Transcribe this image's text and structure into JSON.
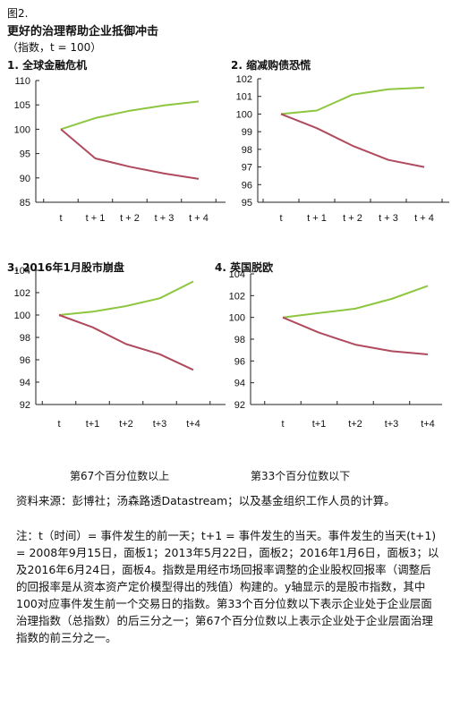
{
  "figure_label": "图2.",
  "title": "更好的治理帮助企业抵御冲击",
  "subtitle": "（指数，t = 100）",
  "legend": {
    "top67": "第67个百分位数以上",
    "bottom33": "第33个百分位数以下"
  },
  "colors": {
    "top67": "#8dc63f",
    "bottom33": "#b04a5f",
    "axis": "#222222"
  },
  "source": "资料来源：彭博社；汤森路透Datastream；以及基金组织工作人员的计算。",
  "note": "注：t（时间）= 事件发生的前一天；t+1 = 事件发生的当天。事件发生的当天(t+1) = 2008年9月15日，面板1；2013年5月22日，面板2；2016年1月6日，面板3；以及2016年6月24日，面板4。指数是用经市场回报率调整的企业股权回报率（调整后的回报率是从资本资产定价模型得出的残值）构建的。y轴显示的是股市指数，其中100对应事件发生前一个交易日的指数。第33个百分位数以下表示企业处于企业层面治理指数（总指数）的后三分之一；第67个百分位数以上表示企业处于企业层面治理指数的前三分之一。",
  "chart_data": [
    {
      "type": "line",
      "title": "1. 全球金融危机",
      "categories": [
        "t",
        "t + 1",
        "t + 2",
        "t + 3",
        "t + 4"
      ],
      "ylim": [
        85,
        110
      ],
      "yticks": [
        85,
        90,
        95,
        100,
        105,
        110
      ],
      "series": [
        {
          "name": "第67个百分位数以上",
          "values": [
            100,
            102.3,
            103.8,
            104.9,
            105.7
          ]
        },
        {
          "name": "第33个百分位数以下",
          "values": [
            100,
            94.0,
            92.3,
            90.9,
            89.8
          ]
        }
      ]
    },
    {
      "type": "line",
      "title": "2. 缩减购债恐慌",
      "categories": [
        "t",
        "t + 1",
        "t + 2",
        "t + 3",
        "t + 4"
      ],
      "ylim": [
        95,
        102
      ],
      "yticks": [
        95,
        96,
        97,
        98,
        99,
        100,
        101,
        102
      ],
      "series": [
        {
          "name": "第67个百分位数以上",
          "values": [
            100,
            100.2,
            101.1,
            101.4,
            101.5
          ]
        },
        {
          "name": "第33个百分位数以下",
          "values": [
            100,
            99.2,
            98.2,
            97.4,
            97.0
          ]
        }
      ]
    },
    {
      "type": "line",
      "title": "3. 2016年1月股市崩盘",
      "categories": [
        "t",
        "t+1",
        "t+2",
        "t+3",
        "t+4"
      ],
      "ylim": [
        92,
        104
      ],
      "yticks": [
        92,
        94,
        96,
        98,
        100,
        102,
        104
      ],
      "series": [
        {
          "name": "第67个百分位数以上",
          "values": [
            100,
            100.3,
            100.8,
            101.5,
            103.0
          ]
        },
        {
          "name": "第33个百分位数以下",
          "values": [
            100,
            98.9,
            97.4,
            96.5,
            95.1
          ]
        }
      ]
    },
    {
      "type": "line",
      "title": "4. 英国脱欧",
      "categories": [
        "t",
        "t+1",
        "t+2",
        "t+3",
        "t+4"
      ],
      "ylim": [
        92,
        104
      ],
      "yticks": [
        92,
        94,
        96,
        98,
        100,
        102,
        104
      ],
      "series": [
        {
          "name": "第67个百分位数以上",
          "values": [
            100,
            100.4,
            100.8,
            101.7,
            102.9
          ]
        },
        {
          "name": "第33个百分位数以下",
          "values": [
            100,
            98.6,
            97.5,
            96.9,
            96.6
          ]
        }
      ]
    }
  ]
}
